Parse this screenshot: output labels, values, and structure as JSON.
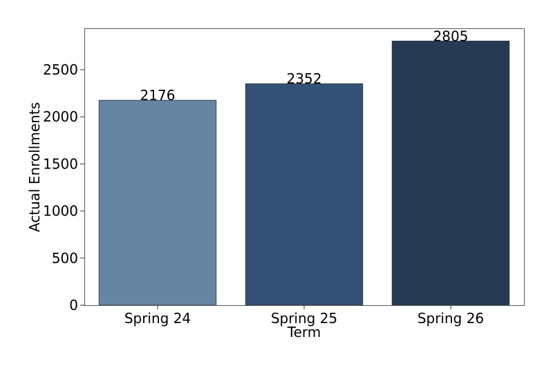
{
  "chart_data": {
    "type": "bar",
    "categories": [
      "Spring 24",
      "Spring 25",
      "Spring 26"
    ],
    "values": [
      2176,
      2352,
      2805
    ],
    "data_labels": [
      "2176",
      "2352",
      "2805"
    ],
    "bar_colors": [
      "#6685a2",
      "#345175",
      "#273a53"
    ],
    "xlabel": "Term",
    "ylabel": "Actual Enrollments",
    "ylim": [
      0,
      2940
    ],
    "yticks": [
      0,
      500,
      1000,
      1500,
      2000,
      2500
    ],
    "ytick_labels": [
      "0",
      "500",
      "1000",
      "1500",
      "2000",
      "2500"
    ],
    "grid": false,
    "legend": "none"
  }
}
